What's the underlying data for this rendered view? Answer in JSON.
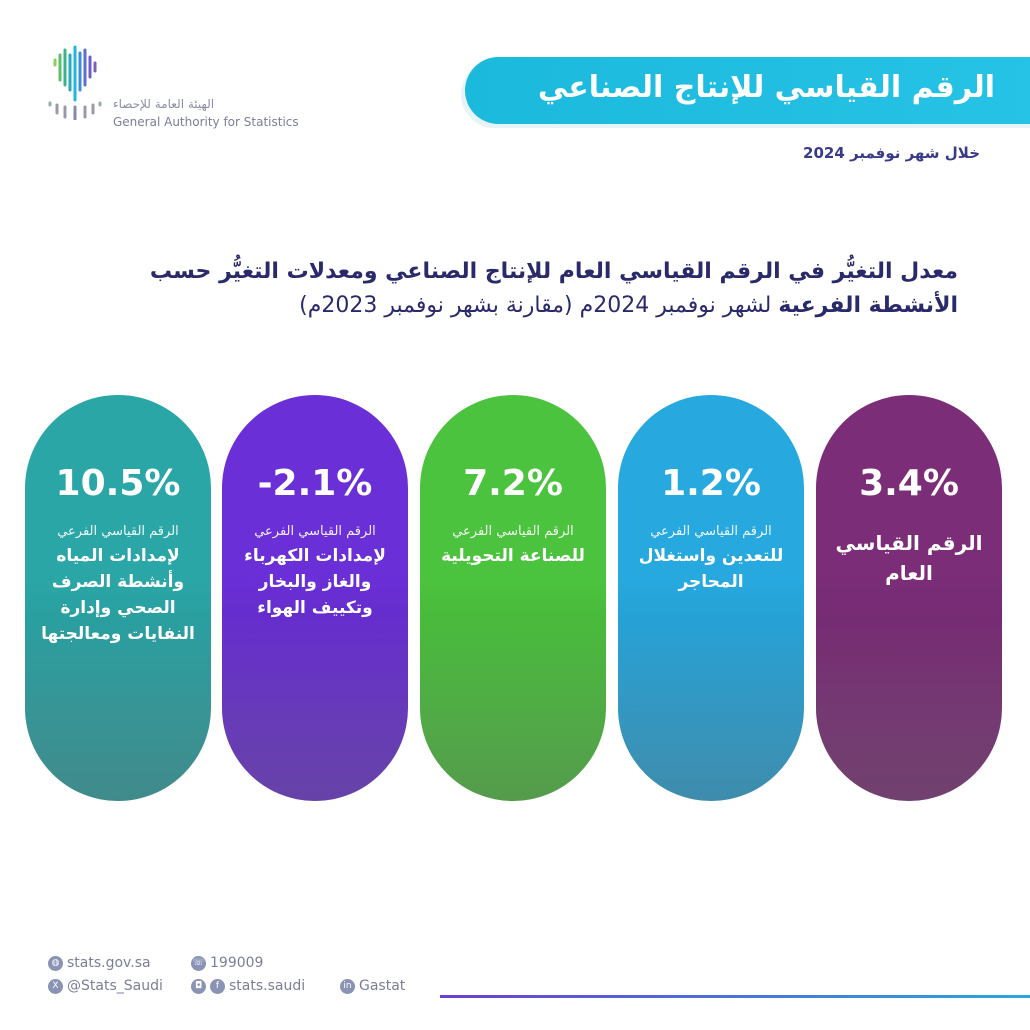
{
  "logo": {
    "arabic": "الهيئة العامة للإحصاء",
    "english": "General Authority for Statistics"
  },
  "header": {
    "title": "الرقم القياسي للإنتاج الصناعي",
    "period": "خلال شهر نوفمبر 2024"
  },
  "subtitle": {
    "bold1": "معدل التغيُّر في الرقم القياسي العام للإنتاج الصناعي ومعدلات التغيُّر حسب",
    "bold2": "الأنشطة الفرعية",
    "rest": " لشهر نوفمبر 2024م (مقارنة بشهر نوفمبر 2023م)"
  },
  "cards": [
    {
      "value": "3.4%",
      "sub": "",
      "name": "الرقم القياسي العام",
      "color": "#7b2d78"
    },
    {
      "value": "1.2%",
      "sub": "الرقم القياسي الفرعي",
      "name": "للتعدين واستغلال المحاجر",
      "color": "#27a9df"
    },
    {
      "value": "7.2%",
      "sub": "الرقم القياسي الفرعي",
      "name": "للصناعة التحويلية",
      "color": "#4cc33e"
    },
    {
      "value": "-2.1%",
      "sub": "الرقم القياسي الفرعي",
      "name": "لإمدادات الكهرباء والغاز والبخار وتكييف الهواء",
      "color": "#6a2fd6"
    },
    {
      "value": "10.5%",
      "sub": "الرقم القياسي الفرعي",
      "name": "لإمدادات المياه وأنشطة الصرف الصحي وإدارة النفايات ومعالجتها",
      "color": "#2ba6a7"
    }
  ],
  "footer": {
    "website": "stats.gov.sa",
    "phone": "199009",
    "x": "@Stats_Saudi",
    "social": "stats.saudi",
    "linkedin": "Gastat"
  }
}
